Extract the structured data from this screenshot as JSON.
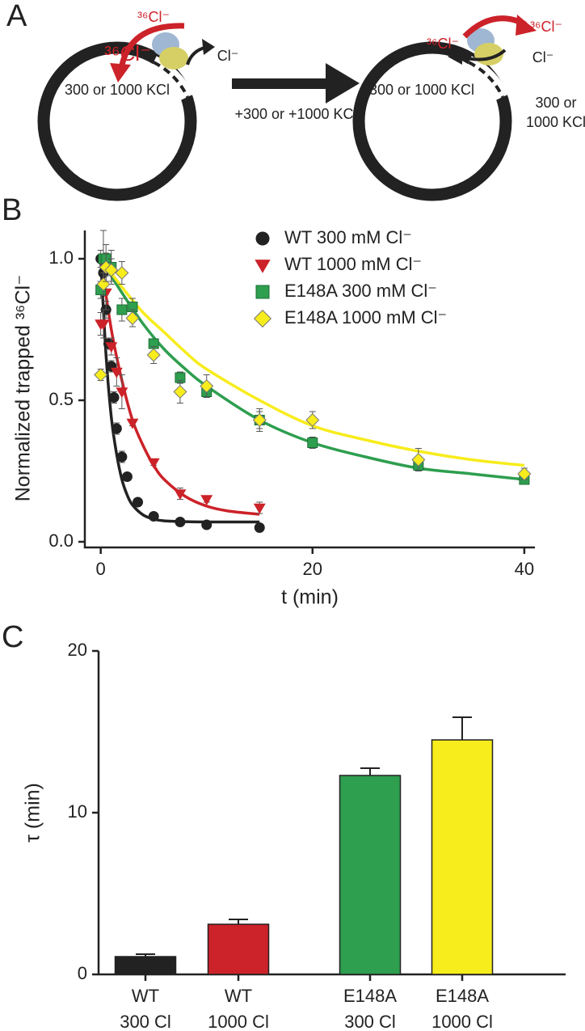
{
  "panel_labels": [
    "A",
    "B",
    "C"
  ],
  "diagram": {
    "labels": [
      "³⁶Cl⁻",
      "³⁶Cl⁻",
      "Cl⁻",
      "300 or 1000 KCl",
      "+300 or +1000 KCl",
      "³⁶Cl⁻",
      "³⁶Cl⁻",
      "Cl⁻",
      "300 or 1000 KCl",
      "300 or",
      "1000 KCl"
    ]
  },
  "chart_data": [
    {
      "type": "scatter",
      "xlabel": "t (min)",
      "ylabel": "Normalized trapped ³⁶Cl⁻",
      "xlim": [
        -1.5,
        41
      ],
      "ylim": [
        -0.02,
        1.1
      ],
      "xticks": [
        0,
        20,
        40
      ],
      "yticks": [
        {
          "value": 0,
          "label": "0.0"
        },
        {
          "value": 0.5,
          "label": "0.5"
        },
        {
          "value": 1,
          "label": "1.0"
        }
      ],
      "legend": "upper right",
      "series": [
        {
          "name": "WT 300 mM Cl⁻",
          "color": "#222222",
          "marker": "circle",
          "x": [
            0,
            0.25,
            0.5,
            0.75,
            1,
            1.25,
            1.5,
            2,
            2.5,
            3.5,
            5,
            7.5,
            10,
            15
          ],
          "values": [
            1.0,
            0.95,
            0.82,
            0.7,
            0.62,
            0.51,
            0.4,
            0.3,
            0.23,
            0.14,
            0.09,
            0.07,
            0.06,
            0.05
          ],
          "errors": [
            0.03,
            0.04,
            0.03,
            0.02,
            0.02,
            0.02,
            0.02,
            0.02,
            0.01,
            0.01,
            0.01,
            0.01,
            0.01,
            0.01
          ],
          "fit_x": [
            0,
            0.5,
            1,
            1.5,
            2,
            2.5,
            3,
            4,
            5,
            6,
            8,
            10,
            15
          ],
          "fit_values": [
            1.0,
            0.66,
            0.44,
            0.31,
            0.22,
            0.165,
            0.13,
            0.095,
            0.08,
            0.074,
            0.071,
            0.07,
            0.07
          ]
        },
        {
          "name": "WT 1000 mM Cl⁻",
          "color": "#cc2229",
          "marker": "triangle-down",
          "x": [
            0,
            0.25,
            0.5,
            1,
            1.5,
            2,
            3,
            5,
            7.5,
            10,
            15
          ],
          "values": [
            0.77,
            0.77,
            0.88,
            0.69,
            0.6,
            0.53,
            0.42,
            0.28,
            0.17,
            0.15,
            0.12
          ],
          "errors": [
            0.04,
            0.05,
            0.06,
            0.03,
            0.05,
            0.06,
            0.01,
            0.01,
            0.02,
            0.01,
            0.02
          ],
          "fit_x": [
            0,
            1,
            2,
            3,
            4,
            5,
            6,
            8,
            10,
            12,
            15
          ],
          "fit_values": [
            1.0,
            0.75,
            0.57,
            0.43,
            0.34,
            0.27,
            0.22,
            0.16,
            0.126,
            0.109,
            0.097
          ]
        },
        {
          "name": "E148A 300 mM Cl⁻",
          "color": "#2e9e4f",
          "marker": "square",
          "x": [
            0,
            0.25,
            0.5,
            1,
            2,
            3,
            5,
            7.5,
            10,
            15,
            20,
            30,
            40
          ],
          "values": [
            0.89,
            1.0,
            1.0,
            0.97,
            0.82,
            0.83,
            0.7,
            0.58,
            0.53,
            0.43,
            0.35,
            0.27,
            0.22
          ],
          "errors": [
            0.03,
            0.1,
            0.05,
            0.06,
            0.04,
            0.03,
            0.01,
            0.02,
            0.02,
            0.03,
            0.02,
            0.02,
            0.01
          ],
          "fit_x": [
            0,
            2,
            4,
            6,
            8,
            10,
            15,
            20,
            25,
            30,
            35,
            40
          ],
          "fit_values": [
            1.0,
            0.88,
            0.77,
            0.68,
            0.61,
            0.55,
            0.43,
            0.35,
            0.3,
            0.26,
            0.24,
            0.22
          ]
        },
        {
          "name": "E148A 1000 mM Cl⁻",
          "color": "#f7ec1c",
          "marker": "diamond",
          "x": [
            0,
            0.25,
            0.5,
            1,
            2,
            3,
            5,
            7.5,
            10,
            15,
            20,
            30,
            40
          ],
          "values": [
            0.59,
            0.91,
            0.97,
            0.96,
            0.95,
            0.79,
            0.66,
            0.53,
            0.55,
            0.43,
            0.43,
            0.29,
            0.24
          ],
          "errors": [
            0.02,
            0.04,
            0.05,
            0.04,
            0.04,
            0.03,
            0.03,
            0.04,
            0.04,
            0.04,
            0.03,
            0.04,
            0.02
          ],
          "fit_x": [
            0,
            2,
            4,
            6,
            8,
            10,
            15,
            20,
            25,
            30,
            35,
            40
          ],
          "fit_values": [
            1.0,
            0.9,
            0.81,
            0.74,
            0.67,
            0.61,
            0.5,
            0.41,
            0.36,
            0.32,
            0.29,
            0.27
          ]
        }
      ]
    },
    {
      "type": "bar",
      "ylabel": "τ (min)",
      "ylim": [
        0,
        20
      ],
      "yticks": [
        0,
        10,
        20
      ],
      "categories": [
        [
          "WT",
          "300 Cl"
        ],
        [
          "WT",
          "1000 Cl"
        ],
        [
          "E148A",
          "300 Cl"
        ],
        [
          "E148A",
          "1000 Cl"
        ]
      ],
      "values": [
        1.1,
        3.1,
        12.3,
        14.5
      ],
      "errors": [
        0.15,
        0.3,
        0.45,
        1.4
      ],
      "colors": [
        "#222222",
        "#cc2229",
        "#2e9e4f",
        "#f7ec1c"
      ]
    }
  ]
}
